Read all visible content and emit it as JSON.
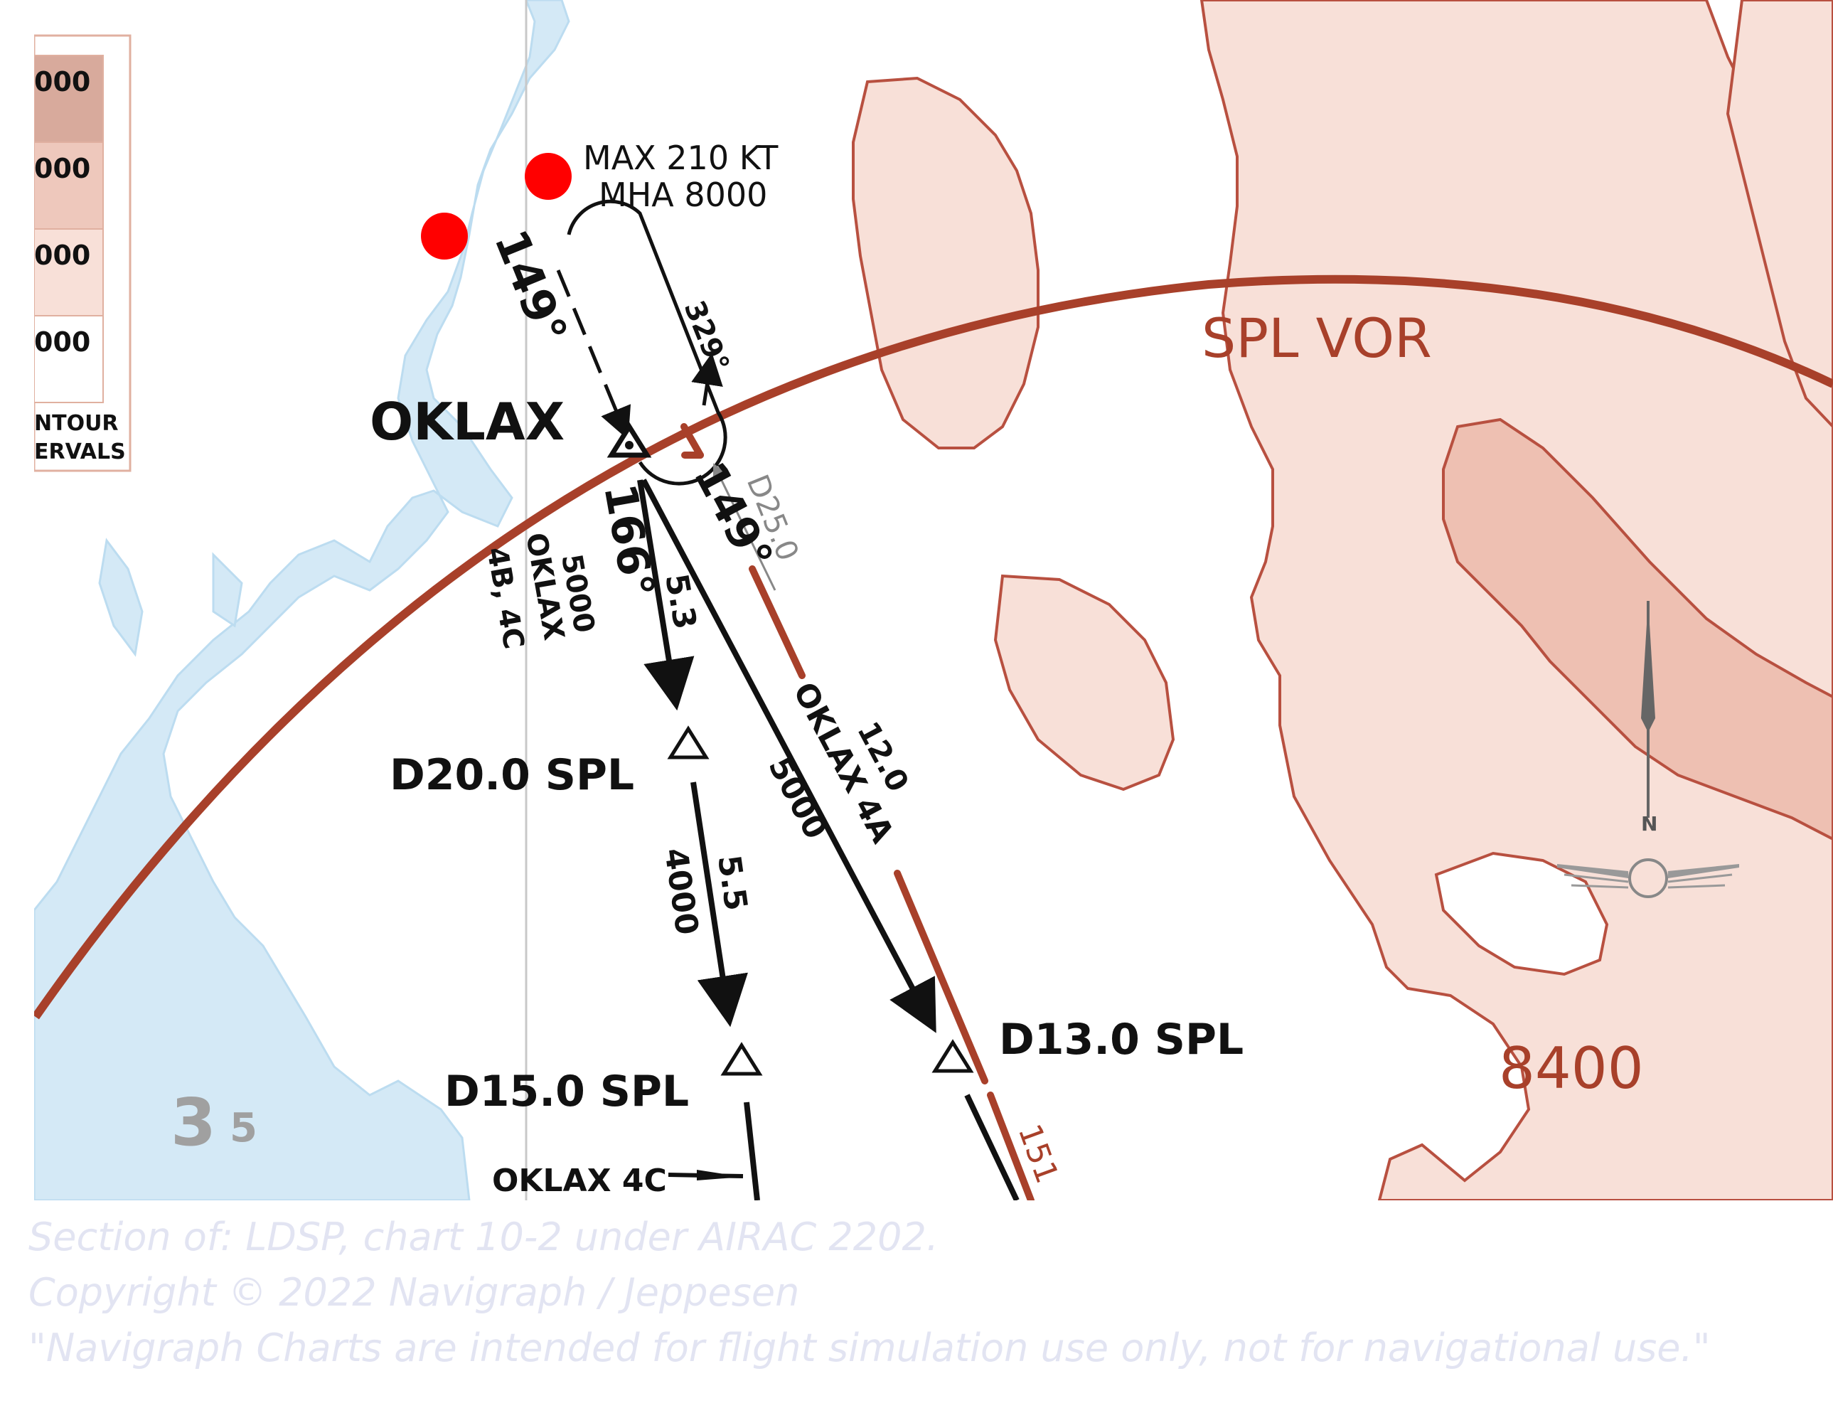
{
  "legend": {
    "values": [
      "000",
      "000",
      "000",
      "000"
    ],
    "swatch_colors": [
      "#d8aa9c",
      "#eec8bc",
      "#f8e0d8",
      "#ffffff"
    ],
    "caption_lines": [
      "NTOUR",
      "ERVALS"
    ]
  },
  "holding": {
    "restrictions_line1": "MAX 210 KT",
    "restrictions_line2": "MHA 8000",
    "inbound_course": "149°",
    "outbound_course": "329°"
  },
  "fixes": {
    "oklax": "OKLAX",
    "d20": "D20.0 SPL",
    "d15": "D15.0 SPL",
    "d13": "D13.0 SPL"
  },
  "routes": {
    "left_course": "166°",
    "left_distance": "5.3",
    "left_altitude": "5000",
    "left_name": "OKLAX",
    "left_variants": "4B, 4C",
    "right_course": "149°",
    "right_distance": "12.0",
    "right_name": "OKLAX 4A",
    "right_altitude": "5000",
    "dme_arc_ref": "D25.0",
    "lower_distance": "5.5",
    "lower_altitude": "4000",
    "bottom_label": "OKLAX 4C",
    "partial_radial": "151"
  },
  "terrain": {
    "vor_label": "SPL VOR",
    "elevation": "8400"
  },
  "grid": {
    "msa_large": "3",
    "msa_small": "5"
  },
  "compass": {
    "north_label": "N"
  },
  "markers": {
    "color": "#ff0000"
  },
  "colors": {
    "arc": "#a8402a",
    "terrain_fill": "#f8e0d8",
    "terrain_dark": "#eec0b2",
    "terrain_stroke": "#b85040",
    "water": "#d4e9f6"
  },
  "caption": {
    "line1": "Section of: LDSP, chart 10-2 under AIRAC 2202.",
    "line2": "Copyright © 2022 Navigraph / Jeppesen",
    "line3": "\"Navigraph Charts are intended for flight simulation use only, not for navigational use.\""
  }
}
